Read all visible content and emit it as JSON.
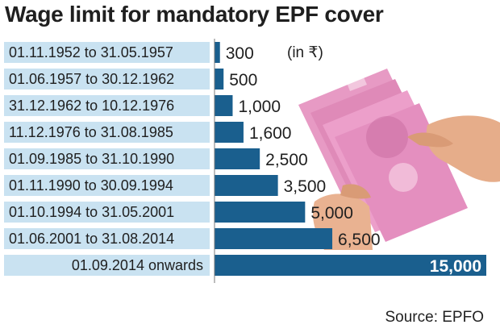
{
  "title": "Wage limit for mandatory EPF cover",
  "unit_note": "(in ₹)",
  "source": "Source: EPFO",
  "colors": {
    "bar": "#1a5f8e",
    "label_box": "#c9e2f1",
    "text": "#1f1f1f"
  },
  "illustration": "hands-holding-banknotes",
  "chart_data": {
    "type": "bar",
    "orientation": "horizontal",
    "title": "Wage limit for mandatory EPF cover",
    "unit": "(in ₹)",
    "categories": [
      "01.11.1952 to 31.05.1957",
      "01.06.1957 to 30.12.1962",
      "31.12.1962 to 10.12.1976",
      "11.12.1976 to 31.08.1985",
      "01.09.1985 to 31.10.1990",
      "01.11.1990 to 30.09.1994",
      "01.10.1994 to 31.05.2001",
      "01.06.2001 to 31.08.2014",
      "01.09.2014 onwards"
    ],
    "values": [
      300,
      500,
      1000,
      1600,
      2500,
      3500,
      5000,
      6500,
      15000
    ],
    "value_labels": [
      "300",
      "500",
      "1,000",
      "1,600",
      "2,500",
      "3,500",
      "5,000",
      "6,500",
      "15,000"
    ],
    "xlim": [
      0,
      15000
    ],
    "grid": false,
    "legend": "none"
  }
}
